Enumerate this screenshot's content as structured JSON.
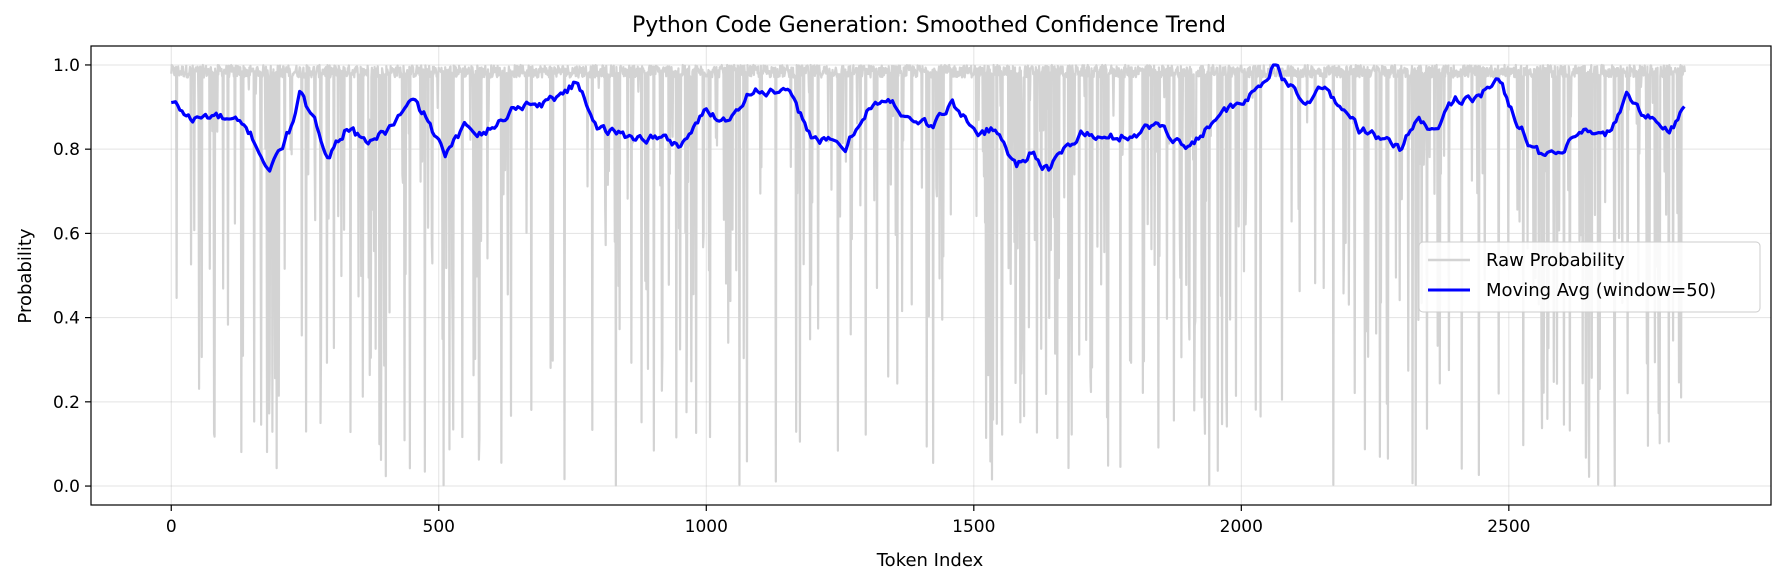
{
  "chart_data": {
    "type": "line",
    "title": "Python Code Generation: Smoothed Confidence Trend",
    "xlabel": "Token Index",
    "ylabel": "Probability",
    "xlim": [
      -150,
      2990
    ],
    "ylim": [
      -0.045,
      1.045
    ],
    "x_ticks": [
      0,
      500,
      1000,
      1500,
      2000,
      2500
    ],
    "y_ticks": [
      0.0,
      0.2,
      0.4,
      0.6,
      0.8,
      1.0
    ],
    "grid": true,
    "legend_position": "center-right",
    "raw_series": {
      "name": "Raw Probability",
      "color": "#d3d3d3",
      "n_points": 2830
    },
    "series": [
      {
        "name": "Moving Avg (window=50)",
        "color": "#0000ff",
        "x": [
          0,
          40,
          80,
          120,
          150,
          185,
          220,
          240,
          270,
          295,
          330,
          360,
          400,
          450,
          480,
          510,
          550,
          600,
          650,
          700,
          760,
          800,
          850,
          900,
          950,
          1000,
          1040,
          1080,
          1110,
          1150,
          1200,
          1260,
          1300,
          1340,
          1380,
          1420,
          1460,
          1500,
          1540,
          1580,
          1610,
          1640,
          1660,
          1700,
          1750,
          1800,
          1850,
          1900,
          1950,
          2000,
          2040,
          2060,
          2080,
          2110,
          2160,
          2220,
          2260,
          2300,
          2330,
          2360,
          2400,
          2440,
          2480,
          2520,
          2560,
          2600,
          2640,
          2680,
          2720,
          2760,
          2800,
          2830
        ],
        "y": [
          0.91,
          0.87,
          0.88,
          0.86,
          0.83,
          0.75,
          0.84,
          0.93,
          0.85,
          0.79,
          0.86,
          0.81,
          0.84,
          0.91,
          0.87,
          0.78,
          0.85,
          0.85,
          0.91,
          0.91,
          0.96,
          0.85,
          0.83,
          0.83,
          0.81,
          0.89,
          0.87,
          0.94,
          0.94,
          0.93,
          0.83,
          0.8,
          0.9,
          0.91,
          0.88,
          0.85,
          0.91,
          0.84,
          0.85,
          0.76,
          0.8,
          0.75,
          0.78,
          0.84,
          0.82,
          0.84,
          0.86,
          0.8,
          0.88,
          0.9,
          0.96,
          1.0,
          0.96,
          0.92,
          0.94,
          0.85,
          0.82,
          0.8,
          0.88,
          0.84,
          0.92,
          0.93,
          0.96,
          0.86,
          0.78,
          0.79,
          0.84,
          0.82,
          0.92,
          0.88,
          0.84,
          0.9
        ]
      }
    ]
  }
}
